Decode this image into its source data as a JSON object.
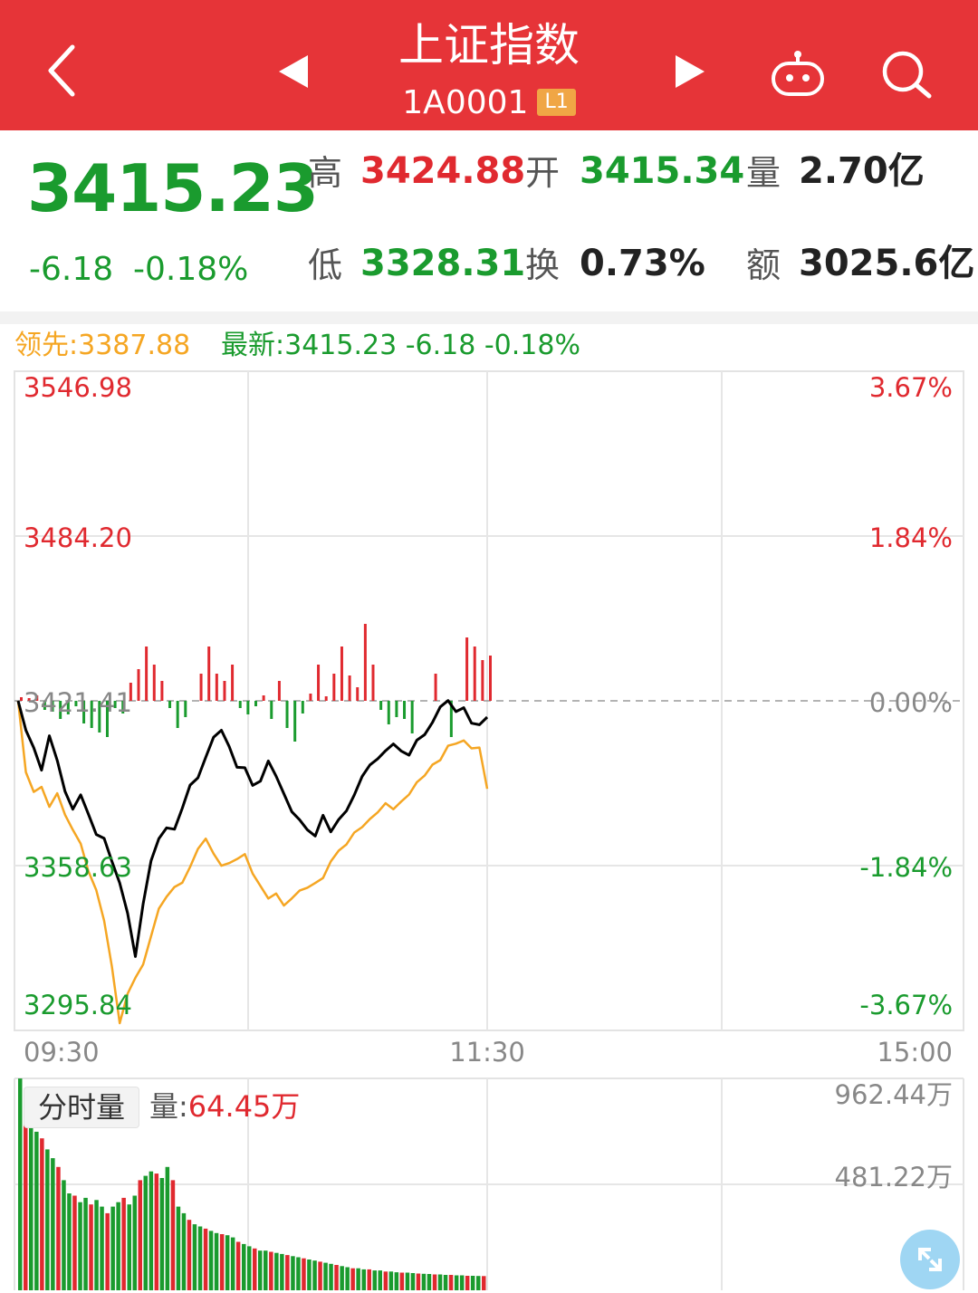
{
  "header": {
    "title": "上证指数",
    "code": "1A0001",
    "level_badge": "L1",
    "icons": [
      "back-chevron-icon",
      "prev-arrow-icon",
      "next-arrow-icon",
      "robot-icon",
      "search-icon"
    ]
  },
  "quote": {
    "price": "3415.23",
    "change": "-6.18",
    "change_pct": "-0.18%",
    "high_label": "高",
    "high": "3424.88",
    "open_label": "开",
    "open": "3415.34",
    "volume_label": "量",
    "volume": "2.70亿",
    "low_label": "低",
    "low": "3328.31",
    "turnover_label": "换",
    "turnover": "0.73%",
    "amount_label": "额",
    "amount": "3025.6亿"
  },
  "legend": {
    "leading": "领先:3387.88",
    "latest": "最新:3415.23  -6.18  -0.18%"
  },
  "colors": {
    "header": "#e63438",
    "up": "#e0292f",
    "down": "#1a9b2e",
    "leading_line": "#f5a623",
    "price_line": "#000000"
  },
  "chart_data": [
    {
      "type": "line",
      "y_axis_left": [
        "3546.98",
        "3484.20",
        "3421.41",
        "3358.63",
        "3295.84"
      ],
      "y_axis_right": [
        "3.67%",
        "1.84%",
        "0.00%",
        "-1.84%",
        "-3.67%"
      ],
      "x_ticks": [
        "09:30",
        "11:30",
        "15:00"
      ],
      "ylim": [
        3295.84,
        3546.98
      ],
      "baseline": 3421.41,
      "series": [
        {
          "name": "最新",
          "color": "#000000",
          "values": [
            3421.4,
            3410.2,
            3403.5,
            3395.0,
            3408.1,
            3398.7,
            3386.9,
            3380.1,
            3385.6,
            3378.2,
            3370.5,
            3369.0,
            3360.2,
            3352.0,
            3340.5,
            3324.0,
            3344.1,
            3360.5,
            3368.9,
            3373.0,
            3372.5,
            3380.5,
            3389.3,
            3392.1,
            3399.9,
            3407.5,
            3410.2,
            3404.0,
            3396.1,
            3395.9,
            3389.2,
            3390.8,
            3398.5,
            3392.7,
            3386.0,
            3379.2,
            3376.1,
            3372.3,
            3369.9,
            3377.8,
            3371.5,
            3376.2,
            3379.5,
            3385.5,
            3392.6,
            3397.0,
            3399.3,
            3402.4,
            3405.0,
            3402.3,
            3400.7,
            3406.4,
            3408.5,
            3413.2,
            3419.1,
            3421.5,
            3417.3,
            3418.8,
            3412.9,
            3412.3,
            3415.2
          ]
        },
        {
          "name": "领先",
          "color": "#f5a623",
          "values": [
            3421.4,
            3394.2,
            3386.7,
            3388.6,
            3381.0,
            3386.2,
            3378.0,
            3372.3,
            3367.0,
            3356.4,
            3349.3,
            3337.6,
            3320.1,
            3298.6,
            3309.8,
            3315.9,
            3321.0,
            3331.7,
            3342.2,
            3346.8,
            3350.5,
            3352.1,
            3358.1,
            3365.0,
            3368.9,
            3363.2,
            3358.6,
            3359.6,
            3361.1,
            3363.0,
            3355.6,
            3350.9,
            3346.1,
            3348.0,
            3343.4,
            3346.1,
            3349.1,
            3350.2,
            3352.0,
            3353.9,
            3360.2,
            3364.3,
            3366.7,
            3371.2,
            3373.3,
            3376.4,
            3378.9,
            3382.4,
            3380.1,
            3383.0,
            3385.7,
            3390.4,
            3392.9,
            3397.1,
            3398.8,
            3404.3,
            3405.1,
            3406.3,
            3403.3,
            3403.6,
            3387.88
          ]
        }
      ]
    },
    {
      "type": "bar",
      "name": "分时量",
      "current_label": "量:",
      "current": "64.45万",
      "y_ticks": [
        "962.44万",
        "481.22万"
      ],
      "ylim": [
        0,
        962.44
      ],
      "values": [
        962,
        780,
        740,
        720,
        690,
        640,
        600,
        560,
        500,
        440,
        430,
        400,
        420,
        390,
        410,
        380,
        350,
        380,
        400,
        420,
        390,
        430,
        500,
        520,
        540,
        530,
        510,
        560,
        500,
        380,
        350,
        320,
        300,
        290,
        280,
        270,
        260,
        255,
        250,
        240,
        220,
        210,
        200,
        190,
        180,
        180,
        175,
        170,
        165,
        160,
        155,
        150,
        145,
        140,
        135,
        130,
        125,
        120,
        115,
        110,
        105,
        100,
        100,
        95,
        95,
        90,
        90,
        85,
        85,
        82,
        80,
        80,
        78,
        76,
        75,
        74,
        72,
        72,
        70,
        70,
        68,
        68,
        66,
        66,
        65,
        64.45
      ]
    }
  ]
}
